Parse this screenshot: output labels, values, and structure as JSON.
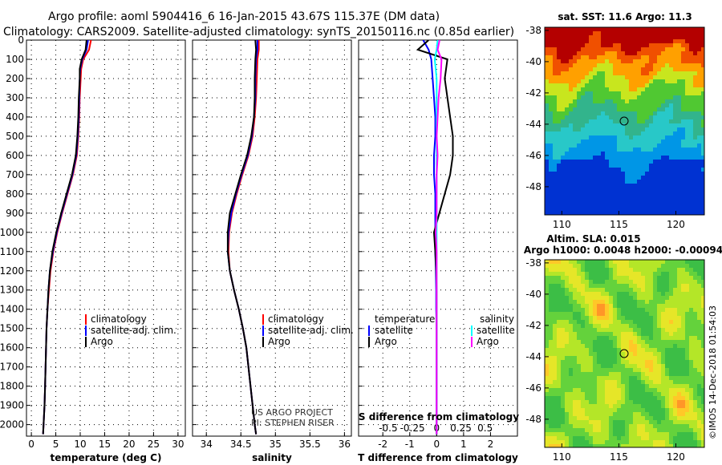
{
  "header": {
    "line1": "Argo profile: aoml 5904416_6 16-Jan-2015 43.67S 115.37E (DM data)",
    "line2": "Climatology: CARS2009. Satellite-adjusted climatology: synTS_20150116.nc (0.85d earlier)"
  },
  "colors": {
    "climatology": "#ff0000",
    "satellite": "#0000ff",
    "argo": "#000000",
    "satellite_s": "#00ffff",
    "argo_s": "#ff00ff"
  },
  "panels": {
    "depth_ticks": [
      "0",
      "100",
      "200",
      "300",
      "400",
      "500",
      "600",
      "700",
      "800",
      "900",
      "1000",
      "1100",
      "1200",
      "1300",
      "1400",
      "1500",
      "1600",
      "1700",
      "1800",
      "1900",
      "2000"
    ],
    "temperature": {
      "xlabel": "temperature (deg C)",
      "x_ticks": [
        "0",
        "5",
        "10",
        "15",
        "20",
        "25",
        "30"
      ],
      "legend": [
        "climatology",
        "satellite-adj. clim.",
        "Argo"
      ]
    },
    "salinity": {
      "xlabel": "salinity",
      "x_ticks": [
        "34",
        "34.5",
        "35",
        "35.5",
        "36"
      ],
      "legend": [
        "climatology",
        "satellite-adj. clim.",
        "Argo"
      ],
      "credit1": "US ARGO PROJECT",
      "credit2": "PI: STEPHEN RISER"
    },
    "difference": {
      "xlabel": "T difference from climatology",
      "x_ticks": [
        "-2",
        "-1",
        "0",
        "1",
        "2"
      ],
      "top_label": "S difference from climatology",
      "top_ticks": [
        "-0.5",
        "-0.25",
        "0",
        "0.25",
        "0.5"
      ],
      "legend_t_title": "temperature",
      "legend_s_title": "salinity",
      "legend_t": [
        "satellite",
        "Argo"
      ],
      "legend_s": [
        "satellite",
        "Argo"
      ]
    }
  },
  "maps": {
    "sst_title": "sat. SST: 11.6 Argo: 11.3",
    "sla_title1": "Altim. SLA: 0.015",
    "sla_title2": "Argo h1000: 0.0048 h2000: -0.00094",
    "lat_ticks": [
      "-38",
      "-40",
      "-42",
      "-44",
      "-46",
      "-48"
    ],
    "lon_ticks": [
      "110",
      "115",
      "120"
    ],
    "stamp": "©IMOS 14-Dec-2018 01:54:03"
  },
  "chart_data": [
    {
      "type": "line",
      "name": "temperature profile",
      "xlabel": "temperature (deg C)",
      "ylabel": "",
      "xlim": [
        -1,
        31.5
      ],
      "ylim": [
        2060,
        0
      ],
      "depth": [
        0,
        50,
        100,
        150,
        200,
        300,
        400,
        500,
        600,
        700,
        800,
        900,
        1000,
        1100,
        1200,
        1300,
        1400,
        1500,
        1600,
        1700,
        1800,
        1900,
        2000,
        2050
      ],
      "series": [
        {
          "name": "climatology",
          "values": [
            12.2,
            11.8,
            10.6,
            10.2,
            10.1,
            9.9,
            9.8,
            9.6,
            9.3,
            8.5,
            7.4,
            6.3,
            5.3,
            4.5,
            3.9,
            3.6,
            3.3,
            3.1,
            3.0,
            2.9,
            2.8,
            2.7,
            2.5,
            2.4
          ]
        },
        {
          "name": "satellite-adj. clim.",
          "values": [
            11.6,
            11.3,
            10.4,
            10.0,
            9.9,
            9.8,
            9.7,
            9.5,
            9.2,
            8.4,
            7.3,
            6.2,
            5.2,
            4.4,
            3.8,
            3.5,
            3.3,
            3.1,
            3.0,
            2.9,
            2.8,
            2.7,
            2.5,
            2.4
          ]
        },
        {
          "name": "Argo",
          "values": [
            11.3,
            11.1,
            10.3,
            9.9,
            9.9,
            9.7,
            9.6,
            9.4,
            9.1,
            8.3,
            7.2,
            6.1,
            5.1,
            4.3,
            3.8,
            3.5,
            3.3,
            3.1,
            3.0,
            2.9,
            2.8,
            2.7,
            2.5,
            2.4
          ]
        }
      ]
    },
    {
      "type": "line",
      "name": "salinity profile",
      "xlabel": "salinity",
      "ylabel": "",
      "xlim": [
        33.8,
        36.1
      ],
      "ylim": [
        2060,
        0
      ],
      "depth": [
        0,
        50,
        100,
        200,
        300,
        400,
        500,
        600,
        700,
        800,
        900,
        1000,
        1100,
        1200,
        1300,
        1400,
        1500,
        1600,
        1700,
        1800,
        1900,
        2000,
        2050
      ],
      "series": [
        {
          "name": "climatology",
          "values": [
            34.76,
            34.76,
            34.74,
            34.73,
            34.72,
            34.7,
            34.67,
            34.61,
            34.52,
            34.44,
            34.37,
            34.33,
            34.32,
            34.34,
            34.4,
            34.47,
            34.53,
            34.58,
            34.61,
            34.64,
            34.67,
            34.7,
            34.72
          ]
        },
        {
          "name": "satellite-adj. clim.",
          "values": [
            34.74,
            34.74,
            34.72,
            34.71,
            34.71,
            34.69,
            34.66,
            34.6,
            34.51,
            34.43,
            34.36,
            34.32,
            34.31,
            34.34,
            34.4,
            34.47,
            34.53,
            34.58,
            34.61,
            34.64,
            34.67,
            34.7,
            34.72
          ]
        },
        {
          "name": "Argo",
          "values": [
            34.71,
            34.72,
            34.71,
            34.7,
            34.7,
            34.69,
            34.65,
            34.59,
            34.5,
            34.42,
            34.34,
            34.31,
            34.31,
            34.34,
            34.4,
            34.47,
            34.53,
            34.58,
            34.61,
            34.64,
            34.67,
            34.7,
            34.72
          ]
        }
      ]
    },
    {
      "type": "line",
      "name": "difference from climatology",
      "xlabel": "T difference from climatology",
      "ylabel": "",
      "xlim": [
        -2.9,
        3.0
      ],
      "ylim": [
        2060,
        0
      ],
      "depth": [
        0,
        50,
        100,
        200,
        300,
        400,
        500,
        600,
        700,
        800,
        900,
        1000,
        1100,
        1200,
        1300,
        1400,
        1500,
        1600,
        1700,
        1800,
        1900,
        2000,
        2050
      ],
      "series": [
        {
          "name": "temperature satellite",
          "values": [
            -0.5,
            -0.3,
            -0.2,
            -0.15,
            -0.1,
            -0.05,
            -0.05,
            -0.1,
            -0.1,
            -0.05,
            -0.05,
            -0.05,
            -0.05,
            -0.03,
            -0.02,
            -0.02,
            0,
            0,
            0,
            0,
            0,
            0,
            0
          ]
        },
        {
          "name": "temperature Argo",
          "values": [
            -0.3,
            -0.7,
            0.4,
            0.3,
            0.4,
            0.5,
            0.6,
            0.6,
            0.5,
            0.3,
            0.1,
            -0.1,
            -0.05,
            -0.02,
            0,
            0,
            0,
            0,
            0,
            0,
            0,
            0,
            0
          ]
        },
        {
          "name": "salinity satellite",
          "values": [
            0.01,
            0.0,
            -0.02,
            0.0,
            0.0,
            0.0,
            0.0,
            0.0,
            0.0,
            0.0,
            0.0,
            0.0,
            0.0,
            0.0,
            0.0,
            0.0,
            0.0,
            0.0,
            0.0,
            0.0,
            0.0,
            0.0,
            0.0
          ]
        },
        {
          "name": "salinity Argo",
          "values": [
            0.03,
            0.01,
            0.05,
            0.04,
            0.02,
            0.01,
            0.0,
            0.01,
            0.0,
            0.0,
            0.0,
            -0.01,
            0.0,
            0.0,
            0.0,
            0.0,
            0.0,
            0.0,
            0.0,
            0.0,
            0.0,
            0.0,
            0.0
          ]
        }
      ]
    },
    {
      "type": "heatmap",
      "name": "satellite SST map",
      "title": "sat. SST: 11.6 Argo: 11.3",
      "xlim": [
        108.5,
        122.5
      ],
      "ylim": [
        -49.8,
        -37.8
      ],
      "profile_location": [
        115.37,
        -43.67
      ]
    },
    {
      "type": "heatmap",
      "name": "altimetry SLA map",
      "title": "Altim. SLA: 0.015",
      "xlim": [
        108.5,
        122.5
      ],
      "ylim": [
        -49.8,
        -37.8
      ],
      "profile_location": [
        115.37,
        -43.67
      ]
    }
  ]
}
